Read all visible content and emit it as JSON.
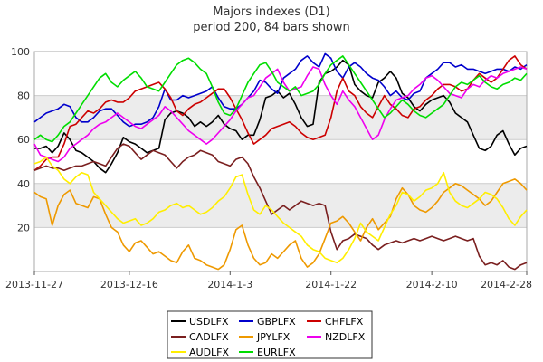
{
  "chart_data": {
    "type": "line",
    "title": "Majors indexes (D1)",
    "subtitle": "period 200, 84 bars shown",
    "xlabel": "",
    "ylabel": "",
    "ylim": [
      0,
      100
    ],
    "yticks": [
      20,
      40,
      60,
      80,
      100
    ],
    "grid": true,
    "x_tick_labels": [
      {
        "bar": 0,
        "label": "2013-11-27"
      },
      {
        "bar": 16,
        "label": "2013-12-16"
      },
      {
        "bar": 33,
        "label": "2014-1-3"
      },
      {
        "bar": 50,
        "label": "2014-1-22"
      },
      {
        "bar": 67,
        "label": "2014-2-10"
      },
      {
        "bar": 83,
        "label": "2014-2-28"
      }
    ],
    "legend_position": "bottom-center",
    "series": [
      {
        "name": "USDLFX",
        "color": "#000000",
        "values": [
          56,
          56,
          57,
          54,
          57,
          63,
          60,
          55,
          54,
          52,
          50,
          47,
          45,
          49,
          54,
          61,
          59,
          58,
          56,
          54,
          55,
          56,
          69,
          72,
          73,
          72,
          70,
          66,
          68,
          66,
          68,
          71,
          67,
          65,
          64,
          60,
          62,
          62,
          69,
          79,
          80,
          82,
          79,
          81,
          76,
          70,
          66,
          67,
          86,
          90,
          91,
          93,
          96,
          94,
          85,
          82,
          80,
          79,
          86,
          88,
          91,
          88,
          81,
          79,
          75,
          73,
          76,
          78,
          79,
          80,
          77,
          72,
          70,
          68,
          62,
          56,
          55,
          57,
          62,
          64,
          58,
          53,
          56,
          57
        ]
      },
      {
        "name": "GBPLFX",
        "color": "#0000cc",
        "values": [
          68,
          70,
          72,
          73,
          74,
          76,
          75,
          70,
          68,
          68,
          70,
          73,
          74,
          74,
          71,
          68,
          66,
          67,
          67,
          68,
          70,
          75,
          83,
          78,
          78,
          80,
          79,
          80,
          81,
          82,
          84,
          79,
          75,
          74,
          74,
          76,
          79,
          82,
          87,
          86,
          83,
          81,
          88,
          90,
          92,
          96,
          98,
          95,
          93,
          99,
          97,
          91,
          88,
          93,
          95,
          93,
          90,
          88,
          87,
          84,
          80,
          82,
          79,
          78,
          81,
          82,
          88,
          90,
          92,
          95,
          95,
          93,
          94,
          92,
          92,
          91,
          90,
          91,
          92,
          92,
          91,
          93,
          92,
          94
        ]
      },
      {
        "name": "CHFLFX",
        "color": "#cc0000",
        "values": [
          46,
          48,
          51,
          52,
          52,
          58,
          66,
          67,
          70,
          73,
          72,
          74,
          77,
          78,
          77,
          77,
          79,
          82,
          83,
          84,
          85,
          86,
          83,
          79,
          73,
          71,
          74,
          76,
          77,
          79,
          81,
          83,
          83,
          79,
          74,
          69,
          63,
          58,
          60,
          62,
          65,
          66,
          67,
          68,
          66,
          63,
          61,
          60,
          61,
          62,
          70,
          82,
          88,
          82,
          80,
          75,
          72,
          70,
          75,
          80,
          76,
          74,
          71,
          70,
          74,
          75,
          78,
          80,
          83,
          85,
          85,
          84,
          82,
          83,
          87,
          90,
          88,
          86,
          88,
          92,
          96,
          98,
          94,
          92
        ]
      },
      {
        "name": "CADLFX",
        "color": "#7a1f1f",
        "values": [
          46,
          47,
          48,
          47,
          47,
          46,
          47,
          48,
          48,
          49,
          50,
          49,
          48,
          52,
          56,
          58,
          57,
          54,
          51,
          53,
          55,
          54,
          53,
          50,
          47,
          50,
          52,
          53,
          55,
          54,
          53,
          50,
          49,
          48,
          51,
          52,
          49,
          43,
          38,
          32,
          26,
          28,
          30,
          28,
          30,
          32,
          31,
          30,
          31,
          30,
          18,
          10,
          14,
          15,
          17,
          16,
          15,
          12,
          10,
          12,
          13,
          14,
          13,
          14,
          15,
          14,
          15,
          16,
          15,
          14,
          15,
          16,
          15,
          14,
          15,
          7,
          3,
          4,
          3,
          5,
          2,
          1,
          3,
          4
        ]
      },
      {
        "name": "JPYLFX",
        "color": "#ee9900",
        "values": [
          36,
          34,
          33,
          21,
          30,
          35,
          37,
          31,
          30,
          29,
          34,
          33,
          26,
          20,
          18,
          12,
          9,
          13,
          14,
          11,
          8,
          9,
          7,
          5,
          4,
          9,
          12,
          6,
          5,
          3,
          2,
          1,
          3,
          10,
          19,
          21,
          12,
          6,
          3,
          4,
          8,
          6,
          9,
          12,
          14,
          6,
          2,
          4,
          8,
          15,
          22,
          23,
          25,
          22,
          18,
          14,
          20,
          24,
          19,
          22,
          25,
          33,
          38,
          35,
          30,
          28,
          27,
          29,
          32,
          36,
          38,
          40,
          39,
          37,
          35,
          33,
          30,
          32,
          36,
          40,
          41,
          42,
          40,
          37
        ]
      },
      {
        "name": "NZDLFX",
        "color": "#ee00ee",
        "values": [
          58,
          53,
          52,
          51,
          50,
          52,
          56,
          58,
          60,
          62,
          65,
          67,
          68,
          70,
          72,
          70,
          68,
          66,
          65,
          67,
          69,
          71,
          75,
          73,
          70,
          67,
          64,
          62,
          60,
          58,
          60,
          63,
          66,
          69,
          73,
          76,
          79,
          80,
          84,
          88,
          90,
          92,
          86,
          82,
          83,
          84,
          89,
          93,
          92,
          85,
          80,
          76,
          82,
          78,
          75,
          70,
          65,
          60,
          62,
          69,
          74,
          78,
          79,
          80,
          83,
          85,
          88,
          89,
          87,
          84,
          81,
          80,
          79,
          83,
          85,
          84,
          87,
          89,
          88,
          90,
          91,
          92,
          93,
          92
        ]
      },
      {
        "name": "AUDLFX",
        "color": "#ffee00",
        "values": [
          49,
          50,
          52,
          48,
          46,
          42,
          40,
          43,
          45,
          44,
          36,
          33,
          30,
          27,
          24,
          22,
          23,
          24,
          21,
          22,
          24,
          27,
          28,
          30,
          31,
          29,
          30,
          28,
          26,
          27,
          29,
          32,
          34,
          38,
          43,
          44,
          35,
          28,
          26,
          30,
          28,
          25,
          22,
          20,
          18,
          16,
          12,
          10,
          9,
          6,
          5,
          4,
          6,
          10,
          15,
          22,
          18,
          16,
          14,
          20,
          26,
          30,
          36,
          35,
          32,
          34,
          37,
          38,
          40,
          45,
          36,
          32,
          30,
          29,
          31,
          33,
          36,
          35,
          33,
          29,
          24,
          21,
          25,
          28
        ]
      },
      {
        "name": "EURLFX",
        "color": "#00dd00",
        "values": [
          60,
          62,
          60,
          59,
          62,
          66,
          68,
          72,
          76,
          80,
          84,
          88,
          90,
          86,
          84,
          87,
          89,
          91,
          88,
          84,
          83,
          82,
          86,
          90,
          94,
          96,
          97,
          95,
          92,
          90,
          84,
          77,
          72,
          71,
          74,
          80,
          86,
          90,
          94,
          95,
          91,
          86,
          84,
          82,
          84,
          80,
          81,
          82,
          85,
          90,
          94,
          96,
          98,
          94,
          90,
          86,
          82,
          78,
          74,
          70,
          72,
          75,
          78,
          76,
          73,
          71,
          70,
          72,
          74,
          76,
          80,
          84,
          86,
          85,
          87,
          89,
          86,
          84,
          83,
          85,
          86,
          88,
          87,
          90
        ]
      }
    ]
  }
}
